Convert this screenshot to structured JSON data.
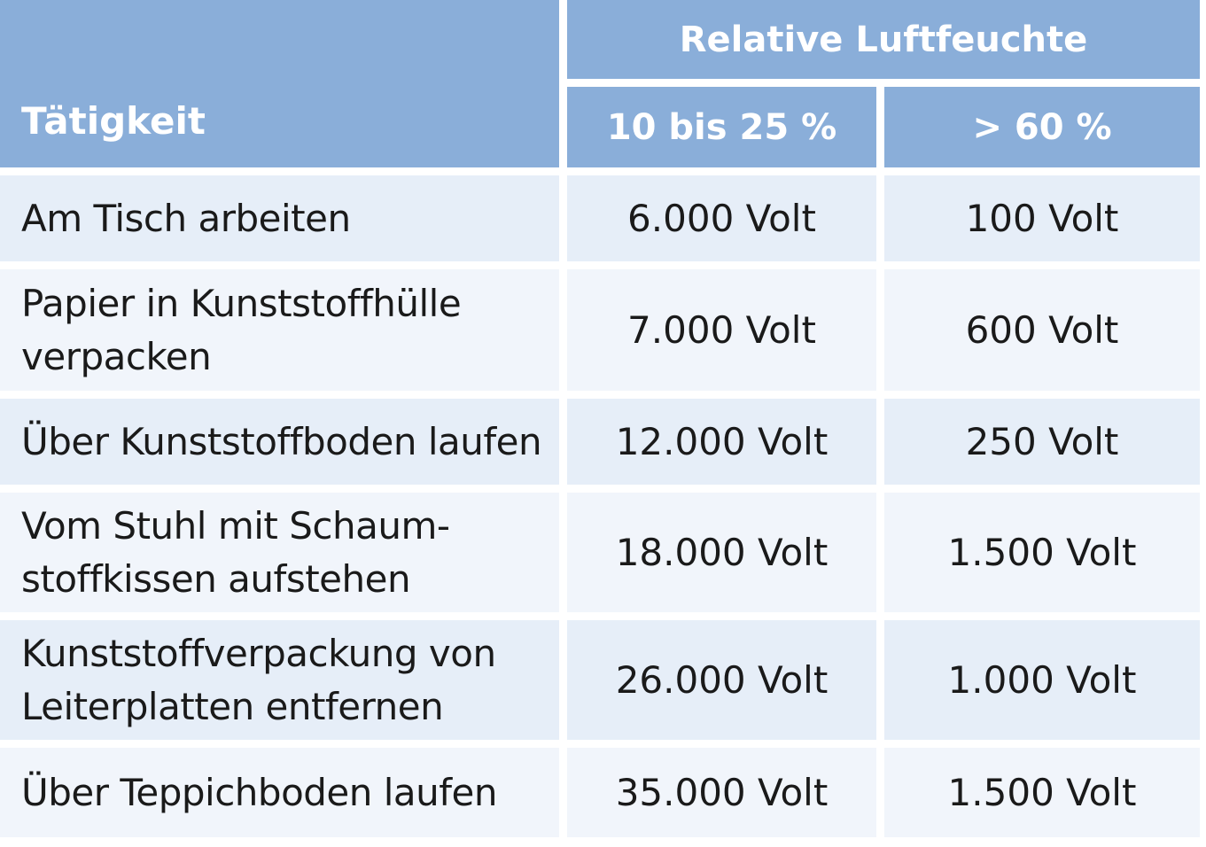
{
  "table": {
    "header": {
      "activity_label": "Tätigkeit",
      "group_label": "Relative Luftfeuchte",
      "columns": [
        "10  bis 25 %",
        "> 60 %"
      ]
    },
    "rows": [
      {
        "activity": "Am Tisch arbeiten",
        "low": "6.000 Volt",
        "high": "100 Volt"
      },
      {
        "activity": "Papier in Kunststoffhülle verpacken",
        "low": "7.000 Volt",
        "high": "600 Volt"
      },
      {
        "activity": "Über Kunststoffboden laufen",
        "low": "12.000 Volt",
        "high": "250 Volt"
      },
      {
        "activity": "Vom Stuhl mit Schaum-stoffkissen aufstehen",
        "low": "18.000 Volt",
        "high": "1.500 Volt"
      },
      {
        "activity": "Kunststoffverpackung von Leiterplatten entfernen",
        "low": "26.000 Volt",
        "high": "1.000 Volt"
      },
      {
        "activity": "Über Teppichboden laufen",
        "low": "35.000 Volt",
        "high": "1.500 Volt"
      }
    ],
    "colors": {
      "header_bg": "#8aaed9",
      "row_even_bg": "#e6eef8",
      "row_odd_bg": "#f1f5fb"
    }
  }
}
